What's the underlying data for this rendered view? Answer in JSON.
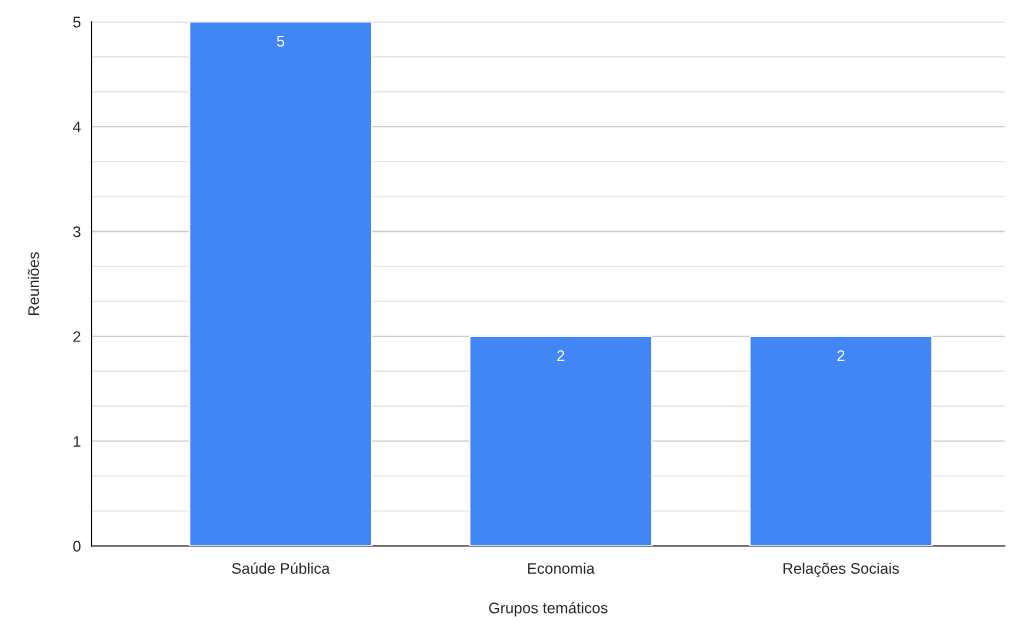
{
  "chart_data": {
    "type": "bar",
    "xlabel": "Grupos temáticos",
    "ylabel": "Reuniões",
    "categories": [
      "Saúde Pública",
      "Economia",
      "Relações Sociais"
    ],
    "values": [
      5,
      2,
      2
    ],
    "color": "#4285f4",
    "ylim": [
      0,
      5
    ],
    "yticks": [
      0,
      {
        "value": 0.333,
        "label": null
      },
      {
        "value": 0.667,
        "label": null
      },
      1,
      {
        "value": 1.333,
        "label": null
      },
      {
        "value": 1.667,
        "label": null
      },
      2,
      {
        "value": 2.333,
        "label": null
      },
      {
        "value": 2.667,
        "label": null
      },
      3,
      {
        "value": 3.333,
        "label": null
      },
      {
        "value": 3.667,
        "label": null
      },
      4,
      {
        "value": 4.333,
        "label": null
      },
      {
        "value": 4.667,
        "label": null
      },
      5
    ],
    "grid": "y",
    "data_labels": true,
    "legend": false
  }
}
